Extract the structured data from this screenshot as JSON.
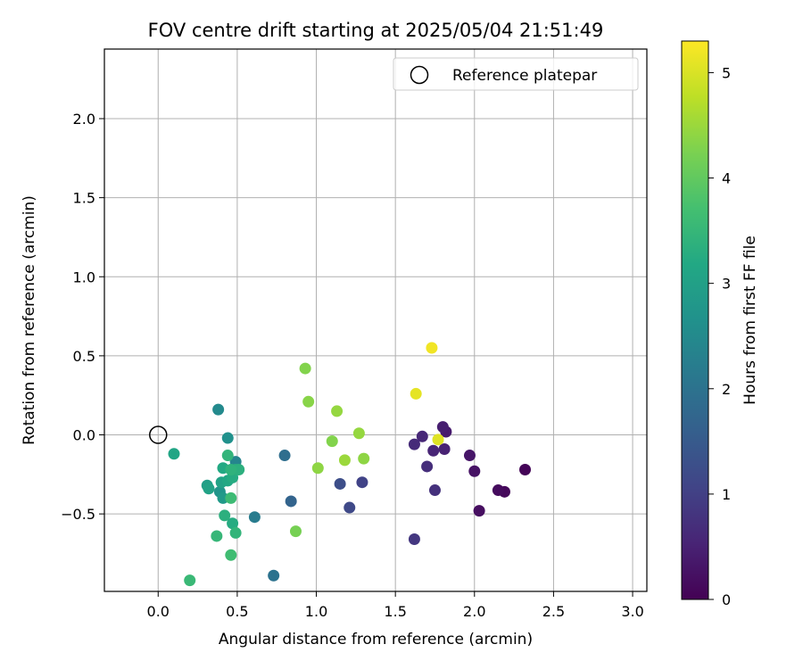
{
  "chart_data": {
    "type": "scatter",
    "title": "FOV centre drift starting at 2025/05/04 21:51:49",
    "xlabel": "Angular distance from reference (arcmin)",
    "ylabel": "Rotation from reference (arcmin)",
    "xlim": [
      -0.34,
      3.09
    ],
    "ylim": [
      -0.99,
      2.44
    ],
    "x_ticks": [
      0.0,
      0.5,
      1.0,
      1.5,
      2.0,
      2.5,
      3.0
    ],
    "y_ticks": [
      -0.5,
      0.0,
      0.5,
      1.0,
      1.5,
      2.0
    ],
    "x_tick_labels": [
      "0.0",
      "0.5",
      "1.0",
      "1.5",
      "2.0",
      "2.5",
      "3.0"
    ],
    "y_tick_labels": [
      "−0.5",
      "0.0",
      "0.5",
      "1.0",
      "1.5",
      "2.0"
    ],
    "grid": true,
    "legend": {
      "position": "top-right",
      "entries": [
        "Reference platepar"
      ]
    },
    "colorbar": {
      "label": "Hours from first FF file",
      "range": [
        0,
        5.3
      ],
      "ticks": [
        0,
        1,
        2,
        3,
        4,
        5
      ],
      "tick_labels": [
        "0",
        "1",
        "2",
        "3",
        "4",
        "5"
      ],
      "colormap": "viridis"
    },
    "reference": {
      "name": "Reference platepar",
      "x": 0.0,
      "y": 0.0
    },
    "points": [
      {
        "x": 2.32,
        "y": -0.22,
        "t": 0.05
      },
      {
        "x": 2.19,
        "y": -0.36,
        "t": 0.1
      },
      {
        "x": 2.15,
        "y": -0.35,
        "t": 0.15
      },
      {
        "x": 2.03,
        "y": -0.48,
        "t": 0.2
      },
      {
        "x": 2.0,
        "y": -0.23,
        "t": 0.25
      },
      {
        "x": 1.97,
        "y": -0.13,
        "t": 0.3
      },
      {
        "x": 1.82,
        "y": 0.02,
        "t": 0.4
      },
      {
        "x": 1.8,
        "y": 0.05,
        "t": 0.45
      },
      {
        "x": 1.81,
        "y": -0.09,
        "t": 0.5
      },
      {
        "x": 1.74,
        "y": -0.1,
        "t": 0.55
      },
      {
        "x": 1.67,
        "y": -0.01,
        "t": 0.6
      },
      {
        "x": 1.62,
        "y": -0.06,
        "t": 0.65
      },
      {
        "x": 1.7,
        "y": -0.2,
        "t": 0.7
      },
      {
        "x": 1.75,
        "y": -0.35,
        "t": 0.75
      },
      {
        "x": 1.62,
        "y": -0.66,
        "t": 0.85
      },
      {
        "x": 1.29,
        "y": -0.3,
        "t": 1.05
      },
      {
        "x": 1.21,
        "y": -0.46,
        "t": 1.15
      },
      {
        "x": 1.15,
        "y": -0.31,
        "t": 1.25
      },
      {
        "x": 0.73,
        "y": -0.89,
        "t": 2.0
      },
      {
        "x": 0.84,
        "y": -0.42,
        "t": 1.7
      },
      {
        "x": 0.8,
        "y": -0.13,
        "t": 1.9
      },
      {
        "x": 0.61,
        "y": -0.52,
        "t": 2.2
      },
      {
        "x": 0.49,
        "y": -0.17,
        "t": 2.4
      },
      {
        "x": 0.38,
        "y": 0.16,
        "t": 2.5
      },
      {
        "x": 0.44,
        "y": -0.02,
        "t": 2.65
      },
      {
        "x": 0.39,
        "y": -0.36,
        "t": 2.75
      },
      {
        "x": 0.41,
        "y": -0.4,
        "t": 2.85
      },
      {
        "x": 0.31,
        "y": -0.32,
        "t": 2.95
      },
      {
        "x": 0.32,
        "y": -0.34,
        "t": 3.05
      },
      {
        "x": 0.4,
        "y": -0.3,
        "t": 3.05
      },
      {
        "x": 0.44,
        "y": -0.29,
        "t": 3.15
      },
      {
        "x": 0.1,
        "y": -0.12,
        "t": 3.1
      },
      {
        "x": 0.41,
        "y": -0.21,
        "t": 3.2
      },
      {
        "x": 0.47,
        "y": -0.27,
        "t": 3.25
      },
      {
        "x": 0.49,
        "y": -0.22,
        "t": 3.3
      },
      {
        "x": 0.51,
        "y": -0.22,
        "t": 3.35
      },
      {
        "x": 0.46,
        "y": -0.22,
        "t": 3.4
      },
      {
        "x": 0.44,
        "y": -0.13,
        "t": 3.45
      },
      {
        "x": 0.47,
        "y": -0.56,
        "t": 3.25
      },
      {
        "x": 0.42,
        "y": -0.51,
        "t": 3.35
      },
      {
        "x": 0.49,
        "y": -0.62,
        "t": 3.45
      },
      {
        "x": 0.37,
        "y": -0.64,
        "t": 3.5
      },
      {
        "x": 0.46,
        "y": -0.4,
        "t": 3.6
      },
      {
        "x": 0.46,
        "y": -0.76,
        "t": 3.65
      },
      {
        "x": 0.2,
        "y": -0.92,
        "t": 3.55
      },
      {
        "x": 0.87,
        "y": -0.61,
        "t": 4.2
      },
      {
        "x": 0.93,
        "y": 0.42,
        "t": 4.3
      },
      {
        "x": 0.95,
        "y": 0.21,
        "t": 4.35
      },
      {
        "x": 1.01,
        "y": -0.21,
        "t": 4.4
      },
      {
        "x": 1.1,
        "y": -0.04,
        "t": 4.3
      },
      {
        "x": 1.13,
        "y": 0.15,
        "t": 4.45
      },
      {
        "x": 1.18,
        "y": -0.16,
        "t": 4.5
      },
      {
        "x": 1.27,
        "y": 0.01,
        "t": 4.45
      },
      {
        "x": 1.3,
        "y": -0.15,
        "t": 4.4
      },
      {
        "x": 1.63,
        "y": 0.26,
        "t": 5.1
      },
      {
        "x": 1.73,
        "y": 0.55,
        "t": 5.2
      },
      {
        "x": 1.77,
        "y": -0.03,
        "t": 5.05
      }
    ]
  }
}
